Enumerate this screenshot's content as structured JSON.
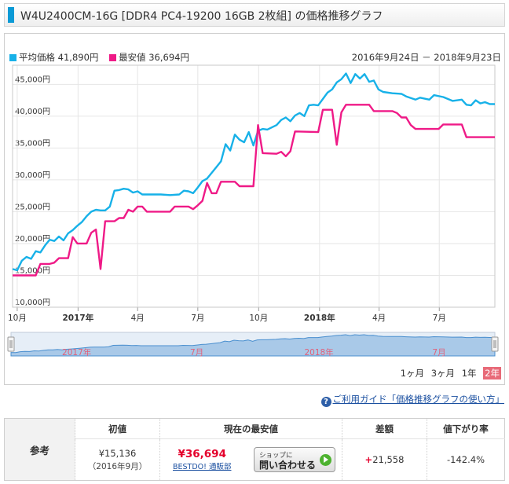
{
  "page_title": "W4U2400CM-16G [DDR4 PC4-19200 16GB 2枚組] の価格推移グラフ",
  "chart_data": {
    "type": "line",
    "title": "",
    "daterange": "2016年9月24日 － 2018年9月23日",
    "xlabel": "",
    "ylabel": "",
    "ylim": [
      10000,
      48000
    ],
    "grid": true,
    "legend_placement": "top-left",
    "y_ticks": [
      10000,
      15000,
      20000,
      25000,
      30000,
      35000,
      40000,
      45000
    ],
    "y_tick_labels": [
      "10,000円",
      "15,000円",
      "20,000円",
      "25,000円",
      "30,000円",
      "35,000円",
      "40,000円",
      "45,000円"
    ],
    "x_ticks": [
      {
        "label": "10月",
        "x": "2016-10-01",
        "bold": false
      },
      {
        "label": "2017年",
        "x": "2017-01-01",
        "bold": true
      },
      {
        "label": "4月",
        "x": "2017-04-01",
        "bold": false
      },
      {
        "label": "7月",
        "x": "2017-07-01",
        "bold": false
      },
      {
        "label": "10月",
        "x": "2017-10-01",
        "bold": false
      },
      {
        "label": "2018年",
        "x": "2018-01-01",
        "bold": true
      },
      {
        "label": "4月",
        "x": "2018-04-01",
        "bold": false
      },
      {
        "label": "7月",
        "x": "2018-07-01",
        "bold": false
      }
    ],
    "xlim": [
      "2016-09-24",
      "2018-09-23"
    ],
    "series": [
      {
        "name": "平均価格",
        "summary": "41,890円",
        "color": "#17b1e8",
        "points": [
          [
            "2016-09-24",
            16000
          ],
          [
            "2016-10-01",
            15800
          ],
          [
            "2016-10-08",
            17300
          ],
          [
            "2016-10-15",
            17900
          ],
          [
            "2016-10-22",
            17600
          ],
          [
            "2016-10-29",
            18800
          ],
          [
            "2016-11-05",
            18600
          ],
          [
            "2016-11-12",
            19700
          ],
          [
            "2016-11-19",
            20600
          ],
          [
            "2016-11-26",
            20400
          ],
          [
            "2016-12-03",
            21100
          ],
          [
            "2016-12-10",
            20500
          ],
          [
            "2016-12-17",
            21600
          ],
          [
            "2016-12-24",
            22100
          ],
          [
            "2016-12-31",
            22800
          ],
          [
            "2017-01-07",
            23400
          ],
          [
            "2017-01-14",
            24300
          ],
          [
            "2017-01-21",
            25000
          ],
          [
            "2017-01-28",
            25300
          ],
          [
            "2017-02-04",
            25200
          ],
          [
            "2017-02-11",
            25200
          ],
          [
            "2017-02-18",
            25800
          ],
          [
            "2017-02-25",
            28300
          ],
          [
            "2017-03-04",
            28400
          ],
          [
            "2017-03-11",
            28600
          ],
          [
            "2017-03-18",
            28500
          ],
          [
            "2017-03-25",
            28000
          ],
          [
            "2017-04-01",
            28200
          ],
          [
            "2017-04-08",
            27700
          ],
          [
            "2017-04-15",
            27700
          ],
          [
            "2017-04-22",
            27700
          ],
          [
            "2017-05-06",
            27700
          ],
          [
            "2017-05-20",
            27600
          ],
          [
            "2017-06-03",
            27700
          ],
          [
            "2017-06-10",
            28300
          ],
          [
            "2017-06-17",
            28200
          ],
          [
            "2017-06-24",
            27900
          ],
          [
            "2017-07-01",
            28800
          ],
          [
            "2017-07-08",
            29800
          ],
          [
            "2017-07-15",
            30200
          ],
          [
            "2017-07-22",
            31100
          ],
          [
            "2017-07-29",
            32000
          ],
          [
            "2017-08-05",
            32900
          ],
          [
            "2017-08-12",
            35600
          ],
          [
            "2017-08-19",
            34600
          ],
          [
            "2017-08-26",
            37100
          ],
          [
            "2017-09-02",
            36300
          ],
          [
            "2017-09-09",
            35900
          ],
          [
            "2017-09-16",
            37500
          ],
          [
            "2017-09-23",
            35400
          ],
          [
            "2017-09-30",
            37700
          ],
          [
            "2017-10-07",
            38000
          ],
          [
            "2017-10-14",
            37900
          ],
          [
            "2017-10-28",
            38600
          ],
          [
            "2017-11-04",
            39400
          ],
          [
            "2017-11-11",
            39800
          ],
          [
            "2017-11-18",
            39200
          ],
          [
            "2017-11-25",
            40100
          ],
          [
            "2017-12-02",
            40500
          ],
          [
            "2017-12-09",
            40000
          ],
          [
            "2017-12-16",
            41700
          ],
          [
            "2017-12-23",
            41800
          ],
          [
            "2017-12-30",
            41700
          ],
          [
            "2018-01-06",
            42700
          ],
          [
            "2018-01-13",
            43700
          ],
          [
            "2018-01-20",
            44200
          ],
          [
            "2018-01-27",
            45300
          ],
          [
            "2018-02-03",
            45800
          ],
          [
            "2018-02-10",
            46700
          ],
          [
            "2018-02-17",
            45200
          ],
          [
            "2018-02-24",
            46600
          ],
          [
            "2018-03-03",
            45900
          ],
          [
            "2018-03-10",
            46600
          ],
          [
            "2018-03-17",
            45400
          ],
          [
            "2018-03-24",
            45600
          ],
          [
            "2018-03-31",
            44200
          ],
          [
            "2018-04-07",
            43800
          ],
          [
            "2018-04-21",
            43600
          ],
          [
            "2018-05-05",
            43500
          ],
          [
            "2018-05-12",
            43100
          ],
          [
            "2018-05-26",
            42600
          ],
          [
            "2018-06-02",
            42900
          ],
          [
            "2018-06-16",
            42600
          ],
          [
            "2018-06-23",
            43300
          ],
          [
            "2018-07-07",
            43000
          ],
          [
            "2018-07-21",
            42400
          ],
          [
            "2018-08-04",
            42600
          ],
          [
            "2018-08-11",
            41800
          ],
          [
            "2018-08-18",
            41700
          ],
          [
            "2018-08-25",
            42500
          ],
          [
            "2018-09-01",
            42000
          ],
          [
            "2018-09-08",
            42200
          ],
          [
            "2018-09-15",
            41900
          ],
          [
            "2018-09-23",
            41890
          ]
        ]
      },
      {
        "name": "最安値",
        "summary": "36,694円",
        "color": "#ef1a87",
        "points": [
          [
            "2016-09-24",
            15000
          ],
          [
            "2016-10-29",
            15000
          ],
          [
            "2016-11-05",
            16800
          ],
          [
            "2016-11-19",
            16800
          ],
          [
            "2016-11-26",
            17000
          ],
          [
            "2016-12-03",
            17700
          ],
          [
            "2016-12-17",
            17700
          ],
          [
            "2016-12-24",
            21000
          ],
          [
            "2016-12-31",
            20000
          ],
          [
            "2017-01-14",
            20000
          ],
          [
            "2017-01-21",
            21700
          ],
          [
            "2017-01-28",
            22200
          ],
          [
            "2017-02-04",
            16000
          ],
          [
            "2017-02-11",
            23500
          ],
          [
            "2017-02-25",
            23500
          ],
          [
            "2017-03-04",
            24000
          ],
          [
            "2017-03-11",
            24000
          ],
          [
            "2017-03-18",
            25300
          ],
          [
            "2017-03-25",
            25000
          ],
          [
            "2017-04-01",
            25800
          ],
          [
            "2017-04-08",
            25800
          ],
          [
            "2017-04-15",
            25000
          ],
          [
            "2017-05-20",
            25000
          ],
          [
            "2017-05-27",
            25800
          ],
          [
            "2017-06-17",
            25800
          ],
          [
            "2017-06-24",
            25400
          ],
          [
            "2017-07-01",
            26000
          ],
          [
            "2017-07-08",
            26700
          ],
          [
            "2017-07-15",
            29500
          ],
          [
            "2017-07-22",
            27900
          ],
          [
            "2017-07-29",
            27900
          ],
          [
            "2017-08-05",
            29700
          ],
          [
            "2017-08-26",
            29700
          ],
          [
            "2017-09-02",
            29000
          ],
          [
            "2017-09-23",
            29000
          ],
          [
            "2017-09-30",
            38600
          ],
          [
            "2017-10-07",
            34200
          ],
          [
            "2017-10-28",
            34100
          ],
          [
            "2017-11-04",
            34400
          ],
          [
            "2017-11-11",
            33700
          ],
          [
            "2017-11-18",
            34500
          ],
          [
            "2017-11-25",
            37600
          ],
          [
            "2017-12-30",
            37500
          ],
          [
            "2018-01-06",
            41000
          ],
          [
            "2018-01-20",
            41000
          ],
          [
            "2018-01-27",
            35500
          ],
          [
            "2018-02-03",
            40600
          ],
          [
            "2018-02-10",
            41800
          ],
          [
            "2018-03-17",
            41800
          ],
          [
            "2018-03-24",
            40800
          ],
          [
            "2018-04-21",
            40800
          ],
          [
            "2018-04-28",
            40500
          ],
          [
            "2018-05-05",
            39800
          ],
          [
            "2018-05-12",
            39800
          ],
          [
            "2018-05-19",
            38600
          ],
          [
            "2018-05-26",
            38000
          ],
          [
            "2018-06-30",
            38000
          ],
          [
            "2018-07-07",
            38700
          ],
          [
            "2018-08-04",
            38700
          ],
          [
            "2018-08-11",
            36694
          ],
          [
            "2018-09-23",
            36694
          ]
        ]
      }
    ],
    "navigator": {
      "labels": [
        {
          "label": "2017年",
          "x": "2017-01-01"
        },
        {
          "label": "7月",
          "x": "2017-07-01"
        },
        {
          "label": "2018年",
          "x": "2018-01-01"
        },
        {
          "label": "7月",
          "x": "2018-07-01"
        }
      ]
    }
  },
  "range_buttons": [
    {
      "label": "1ヶ月",
      "active": false
    },
    {
      "label": "3ヶ月",
      "active": false
    },
    {
      "label": "1年",
      "active": false
    },
    {
      "label": "2年",
      "active": true
    }
  ],
  "guide_link": "ご利用ガイド「価格推移グラフの使い方」",
  "reference": {
    "row_label": "参考",
    "headers": {
      "initial": "初値",
      "current_low": "現在の最安値",
      "diff": "差額",
      "drop_rate": "値下がり率"
    },
    "initial_price": "¥15,136",
    "initial_date": "（2016年9月）",
    "current_low_price": "¥36,694",
    "shop_name": "BESTDO! 通販部",
    "ask_button_small": "ショップに",
    "ask_button_label": "問い合わせる",
    "diff_sign": "+",
    "diff_value": "21,558",
    "drop_rate": "-142.4%"
  }
}
